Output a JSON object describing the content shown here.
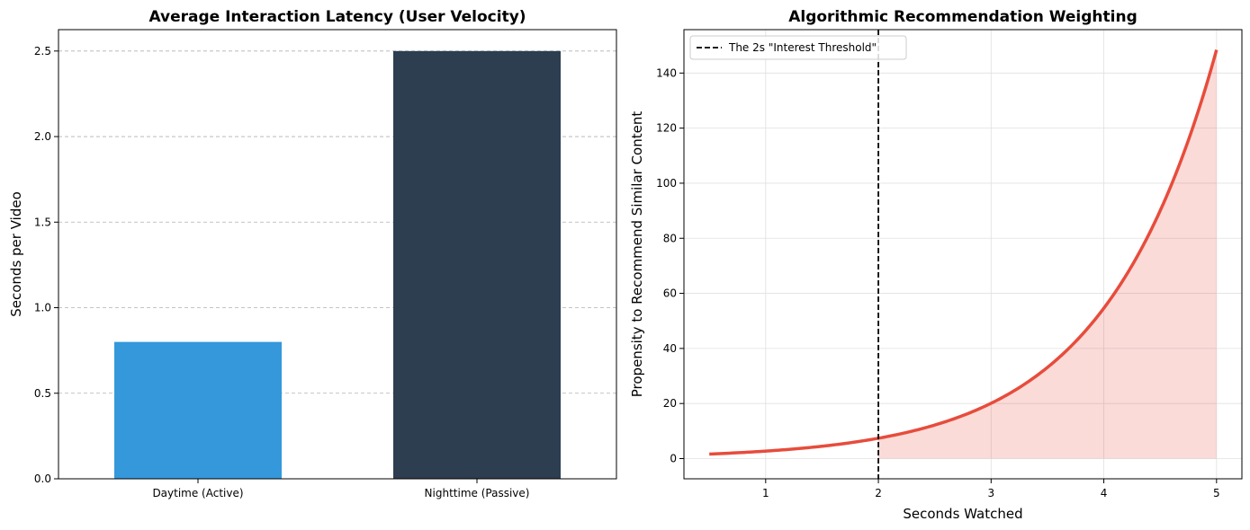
{
  "chart_data": [
    {
      "type": "bar",
      "title": "Average Interaction Latency (User Velocity)",
      "xlabel": "",
      "ylabel": "Seconds per Video",
      "categories": [
        "Daytime (Active)",
        "Nighttime (Passive)"
      ],
      "values": [
        0.8,
        2.5
      ],
      "colors": [
        "#3498db",
        "#2c3e50"
      ],
      "ylim": [
        0,
        2.625
      ],
      "yticks": [
        0.0,
        0.5,
        1.0,
        1.5,
        2.0,
        2.5
      ],
      "ytick_labels": [
        "0.0",
        "0.5",
        "1.0",
        "1.5",
        "2.0",
        "2.5"
      ],
      "grid": "y, dashed"
    },
    {
      "type": "line",
      "title": "Algorithmic Recommendation Weighting",
      "xlabel": "Seconds Watched",
      "ylabel": "Propensity to Recommend Similar Content",
      "function": "y = e^x",
      "x_domain": [
        0.5,
        5
      ],
      "series": [
        {
          "values_x": [
            0.5,
            1.0,
            1.5,
            2.0,
            2.5,
            3.0,
            3.5,
            4.0,
            4.5,
            5.0
          ],
          "values_y": [
            1.65,
            2.72,
            4.48,
            7.39,
            12.18,
            20.09,
            33.12,
            54.6,
            90.02,
            148.41
          ],
          "color": "#e74c3c"
        }
      ],
      "fill": {
        "from_x": 2,
        "to_x": 5,
        "color": "#e74c3c",
        "alpha": 0.2
      },
      "vline": {
        "x": 2,
        "label": "The 2s \"Interest Threshold\"",
        "color": "#000000",
        "style": "dashed"
      },
      "legend": {
        "position": "upper-left",
        "entries": [
          "The 2s \"Interest Threshold\""
        ]
      },
      "xlim": [
        0.275,
        5.225
      ],
      "ylim": [
        -7.34,
        155.76
      ],
      "xticks": [
        1,
        2,
        3,
        4,
        5
      ],
      "xtick_labels": [
        "1",
        "2",
        "3",
        "4",
        "5"
      ],
      "yticks": [
        0,
        20,
        40,
        60,
        80,
        100,
        120,
        140
      ],
      "ytick_labels": [
        "0",
        "20",
        "40",
        "60",
        "80",
        "100",
        "120",
        "140"
      ],
      "grid": "both, solid light"
    }
  ]
}
